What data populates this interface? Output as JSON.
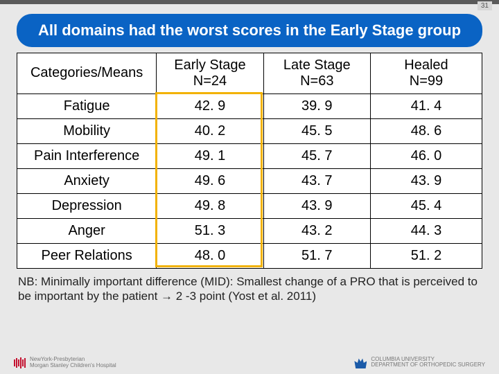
{
  "page_number": "31",
  "title": "All domains had the worst scores in the Early Stage group",
  "table": {
    "columns": [
      "Categories/Means",
      "Early Stage N=24",
      "Late Stage N=63",
      "Healed N=99"
    ],
    "col_header_lines": [
      [
        "Categories/Means"
      ],
      [
        "Early Stage",
        "N=24"
      ],
      [
        "Late Stage",
        "N=63"
      ],
      [
        "Healed",
        "N=99"
      ]
    ],
    "rows": [
      [
        "Fatigue",
        "42. 9",
        "39. 9",
        "41. 4"
      ],
      [
        "Mobility",
        "40. 2",
        "45. 5",
        "48. 6"
      ],
      [
        "Pain Interference",
        "49. 1",
        "45. 7",
        "46. 0"
      ],
      [
        "Anxiety",
        "49. 6",
        "43. 7",
        "43. 9"
      ],
      [
        "Depression",
        "49. 8",
        "43. 9",
        "45. 4"
      ],
      [
        "Anger",
        "51. 3",
        "43. 2",
        "44. 3"
      ],
      [
        "Peer Relations",
        "48. 0",
        "51. 7",
        "51. 2"
      ]
    ],
    "highlight": {
      "col_index": 1,
      "row_start": 0,
      "row_end": 6,
      "border_color": "#f2b200"
    },
    "cell_bg": "#ffffff",
    "border_color": "#000000",
    "font_size_pt": 15
  },
  "footnote": "NB: Minimally important difference (MID): Smallest change of a PRO that is perceived to be important by the patient → 2 -3 point (Yost et al. 2011)",
  "footer": {
    "left": {
      "line1": "NewYork-Presbyterian",
      "line2": "Morgan Stanley Children's Hospital"
    },
    "right": {
      "line1": "COLUMBIA UNIVERSITY",
      "line2": "DEPARTMENT OF ORTHOPEDIC SURGERY"
    }
  },
  "colors": {
    "slide_bg": "#e8e8e8",
    "top_bar": "#5a5a5a",
    "title_bg": "#0a63c4",
    "title_text": "#ffffff",
    "highlight_border": "#f2b200"
  }
}
